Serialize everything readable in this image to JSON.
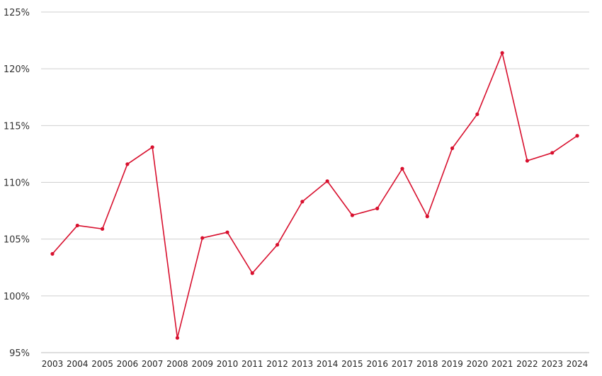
{
  "chart_data": {
    "type": "line",
    "title": "",
    "xlabel": "",
    "ylabel": "",
    "x": [
      "2003",
      "2004",
      "2005",
      "2006",
      "2007",
      "2008",
      "2009",
      "2010",
      "2011",
      "2012",
      "2013",
      "2014",
      "2015",
      "2016",
      "2017",
      "2018",
      "2019",
      "2020",
      "2021",
      "2022",
      "2023",
      "2024"
    ],
    "series": [
      {
        "values": [
          103.7,
          106.2,
          105.9,
          111.6,
          113.1,
          96.3,
          105.1,
          105.6,
          102.0,
          104.5,
          108.3,
          110.1,
          107.1,
          107.7,
          111.2,
          107.0,
          113.0,
          116.0,
          121.4,
          111.9,
          112.6,
          114.1
        ],
        "color": "#d8102e"
      }
    ],
    "ylim": [
      95,
      125
    ],
    "yticks": [
      95,
      100,
      105,
      110,
      115,
      120,
      125
    ],
    "ytick_labels": [
      "95%",
      "100%",
      "105%",
      "110%",
      "115%",
      "120%",
      "125%"
    ],
    "grid": "horizontal",
    "legend": "none"
  }
}
